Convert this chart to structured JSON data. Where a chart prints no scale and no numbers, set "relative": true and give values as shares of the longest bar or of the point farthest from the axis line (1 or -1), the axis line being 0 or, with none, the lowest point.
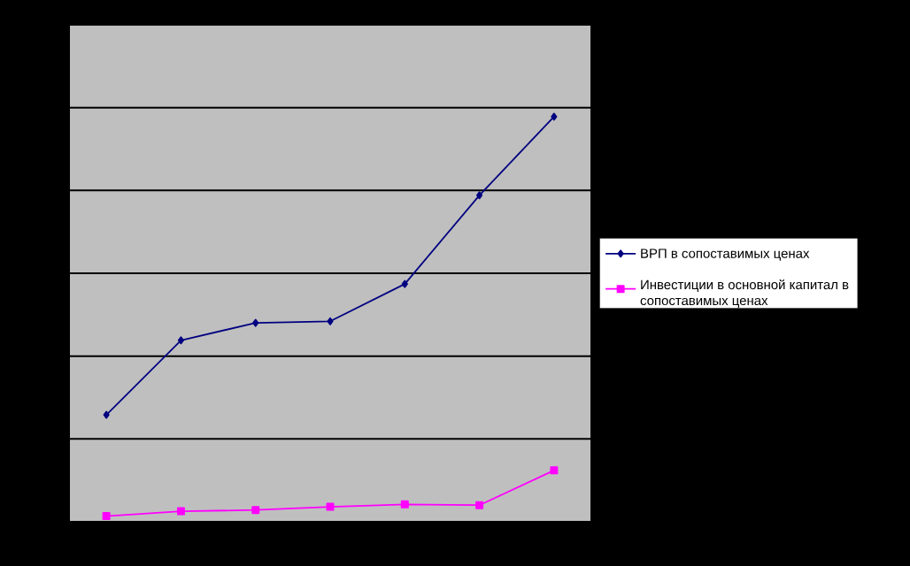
{
  "chart_data": {
    "type": "line",
    "relative": true,
    "categories": [
      null,
      null,
      null,
      null,
      null,
      null,
      null
    ],
    "series": [
      {
        "name": "ВРП в сопоставимых ценах",
        "color": "#000080",
        "marker": "diamond",
        "values": [
          0.264,
          0.448,
          0.491,
          0.495,
          0.587,
          0.806,
          1
        ]
      },
      {
        "name": "Инвестиции в основной капитал в сопоставимых ценах",
        "color": "#ff00ff",
        "marker": "square",
        "values": [
          0.014,
          0.026,
          0.029,
          0.037,
          0.043,
          0.041,
          0.127
        ]
      }
    ],
    "grid": "y",
    "legend": "right"
  }
}
